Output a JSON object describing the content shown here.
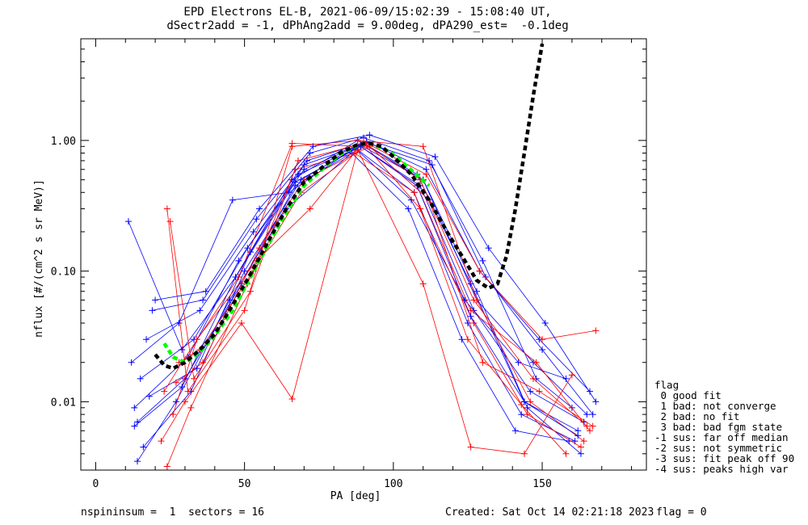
{
  "header": {
    "title_line1": "EPD Electrons EL-B, 2021-06-09/15:02:39 - 15:08:40 UT,",
    "title_line2": "dSectr2add = -1, dPhAng2add = 9.00deg, dPA290_est=  -0.1deg"
  },
  "footer": {
    "left": "nspininsum =  1  sectors = 16",
    "created": "Created: Sat Oct 14 02:21:18 2023",
    "flag": "flag = 0"
  },
  "legend": {
    "title": "flag",
    "items": [
      " 0 good fit",
      " 1 bad: not converge",
      " 2 bad: no fit",
      " 3 bad: bad fgm state",
      "-1 sus: far off median",
      "-2 sus: not symmetric",
      "-3 sus: fit peak off 90",
      "-4 sus: peaks high var"
    ]
  },
  "chart_data": {
    "type": "line",
    "title": "",
    "xlabel": "PA [deg]",
    "ylabel": "nflux [#/(cm^2 s sr MeV)]",
    "xlim": [
      -5,
      185
    ],
    "ylim": [
      0.003,
      6
    ],
    "yscale": "log",
    "x_ticks": [
      0,
      50,
      100,
      150
    ],
    "y_ticks": [
      0.01,
      0.1,
      1.0
    ],
    "y_tick_labels": [
      "0.01",
      "0.10",
      "1.00"
    ],
    "colors": {
      "spectra_a": "#ff0000",
      "spectra_b": "#0000ff",
      "fit_green": "#00ff00",
      "fit_black": "#000000"
    },
    "series": [
      {
        "color": "#0000ff",
        "x": [
          11,
          29,
          47,
          66,
          88,
          110,
          128,
          147,
          165
        ],
        "y": [
          0.24,
          0.025,
          0.09,
          0.5,
          1.0,
          0.5,
          0.06,
          0.02,
          0.008
        ]
      },
      {
        "color": "#0000ff",
        "x": [
          15,
          33,
          51,
          70,
          90,
          108,
          126,
          144,
          162
        ],
        "y": [
          0.015,
          0.03,
          0.15,
          0.6,
          0.95,
          0.55,
          0.08,
          0.01,
          0.006
        ]
      },
      {
        "color": "#0000ff",
        "x": [
          13,
          31,
          48,
          68,
          89,
          109,
          127,
          146,
          164
        ],
        "y": [
          0.009,
          0.022,
          0.12,
          0.55,
          0.9,
          0.45,
          0.05,
          0.012,
          0.007
        ]
      },
      {
        "color": "#0000ff",
        "x": [
          17,
          35,
          53,
          71,
          91,
          111,
          129,
          149,
          166
        ],
        "y": [
          0.03,
          0.05,
          0.2,
          0.7,
          0.98,
          0.6,
          0.1,
          0.03,
          0.012
        ]
      },
      {
        "color": "#0000ff",
        "x": [
          14,
          30,
          49,
          67,
          88,
          107,
          125,
          143,
          161
        ],
        "y": [
          0.007,
          0.015,
          0.08,
          0.45,
          0.85,
          0.4,
          0.04,
          0.008,
          0.005
        ]
      },
      {
        "color": "#0000ff",
        "x": [
          19,
          36,
          54,
          72,
          90,
          112,
          130,
          148,
          160
        ],
        "y": [
          0.05,
          0.06,
          0.25,
          0.8,
          1.05,
          0.7,
          0.12,
          0.015,
          0.009
        ]
      },
      {
        "color": "#0000ff",
        "x": [
          16,
          32,
          50,
          69,
          89,
          110,
          128,
          145,
          163
        ],
        "y": [
          0.0045,
          0.012,
          0.1,
          0.5,
          0.92,
          0.5,
          0.07,
          0.009,
          0.004
        ]
      },
      {
        "color": "#0000ff",
        "x": [
          12,
          28,
          46,
          65,
          87,
          106,
          124,
          142,
          158
        ],
        "y": [
          0.02,
          0.04,
          0.35,
          0.4,
          0.88,
          0.35,
          0.06,
          0.02,
          0.015
        ]
      },
      {
        "color": "#0000ff",
        "x": [
          18,
          34,
          52,
          70,
          91,
          113,
          131,
          150,
          167
        ],
        "y": [
          0.011,
          0.018,
          0.14,
          0.65,
          0.96,
          0.65,
          0.09,
          0.025,
          0.008
        ]
      },
      {
        "color": "#0000ff",
        "x": [
          14,
          27,
          45,
          64,
          86,
          105,
          123,
          141,
          159
        ],
        "y": [
          0.0035,
          0.01,
          0.06,
          0.3,
          0.8,
          0.3,
          0.03,
          0.006,
          0.005
        ]
      },
      {
        "color": "#ff0000",
        "x": [
          24,
          31,
          50,
          66,
          88,
          110,
          128,
          146,
          164
        ],
        "y": [
          0.3,
          0.012,
          0.05,
          0.9,
          1.0,
          0.9,
          0.06,
          0.01,
          0.005
        ]
      },
      {
        "color": "#ff0000",
        "x": [
          25,
          33,
          52,
          68,
          90,
          109,
          127,
          145,
          163
        ],
        "y": [
          0.24,
          0.015,
          0.07,
          0.7,
          0.95,
          0.3,
          0.04,
          0.008,
          0.0045
        ]
      },
      {
        "color": "#ff0000",
        "x": [
          23,
          29,
          48,
          66,
          89,
          108,
          126,
          148,
          166
        ],
        "y": [
          0.012,
          0.02,
          0.09,
          0.95,
          0.9,
          0.45,
          0.05,
          0.02,
          0.006
        ]
      },
      {
        "color": "#ff0000",
        "x": [
          26,
          34,
          54,
          72,
          90,
          111,
          129,
          150,
          168
        ],
        "y": [
          0.008,
          0.03,
          0.12,
          0.3,
          0.98,
          0.55,
          0.1,
          0.03,
          0.035
        ]
      },
      {
        "color": "#ff0000",
        "x": [
          22,
          30,
          49,
          66,
          88,
          110,
          126,
          144,
          160
        ],
        "y": [
          0.005,
          0.01,
          0.04,
          0.0105,
          0.85,
          0.08,
          0.0045,
          0.004,
          0.016
        ]
      },
      {
        "color": "#ff0000",
        "x": [
          27,
          36,
          55,
          70,
          92,
          112,
          130,
          149,
          167
        ],
        "y": [
          0.014,
          0.02,
          0.15,
          0.5,
          0.9,
          0.35,
          0.02,
          0.012,
          0.0065
        ]
      },
      {
        "color": "#ff0000",
        "x": [
          24,
          32,
          51,
          67,
          87,
          107,
          125,
          143,
          158
        ],
        "y": [
          0.0032,
          0.009,
          0.08,
          0.6,
          0.8,
          0.4,
          0.03,
          0.0095,
          0.004
        ]
      },
      {
        "color": "#ff0000",
        "x": [
          28,
          35,
          53,
          69,
          91,
          109,
          127,
          147,
          165
        ],
        "y": [
          0.02,
          0.025,
          0.1,
          0.4,
          0.92,
          0.5,
          0.06,
          0.015,
          0.0065
        ]
      },
      {
        "color": "#0000ff",
        "x": [
          20,
          37,
          55,
          73,
          92,
          114,
          132,
          151,
          168
        ],
        "y": [
          0.06,
          0.07,
          0.3,
          0.9,
          1.1,
          0.75,
          0.15,
          0.04,
          0.01
        ]
      },
      {
        "color": "#0000ff",
        "x": [
          13,
          29,
          47,
          67,
          89,
          108,
          126,
          144,
          162
        ],
        "y": [
          0.0065,
          0.013,
          0.09,
          0.48,
          0.9,
          0.45,
          0.045,
          0.01,
          0.0055
        ]
      }
    ],
    "fits": [
      {
        "color": "#00ff00",
        "style": "dashed",
        "x": [
          23,
          26,
          30,
          35,
          40,
          46,
          52,
          58,
          64,
          70,
          76,
          82,
          88,
          92,
          96,
          100,
          104,
          108,
          112
        ],
        "y": [
          0.028,
          0.022,
          0.02,
          0.024,
          0.032,
          0.05,
          0.09,
          0.16,
          0.28,
          0.45,
          0.6,
          0.78,
          0.92,
          0.95,
          0.88,
          0.78,
          0.65,
          0.54,
          0.45
        ]
      },
      {
        "color": "#000000",
        "style": "dashed",
        "x": [
          20,
          23,
          26,
          30,
          35,
          40,
          46,
          52,
          58,
          64,
          70,
          76,
          82,
          88,
          92,
          96,
          100,
          106,
          112,
          118,
          124,
          128,
          132,
          135,
          138,
          141,
          144,
          147,
          150
        ],
        "y": [
          0.023,
          0.019,
          0.018,
          0.02,
          0.025,
          0.033,
          0.055,
          0.095,
          0.17,
          0.3,
          0.48,
          0.62,
          0.8,
          0.93,
          0.95,
          0.9,
          0.75,
          0.55,
          0.35,
          0.2,
          0.12,
          0.085,
          0.074,
          0.08,
          0.13,
          0.3,
          0.8,
          2.2,
          5.5
        ]
      }
    ]
  }
}
